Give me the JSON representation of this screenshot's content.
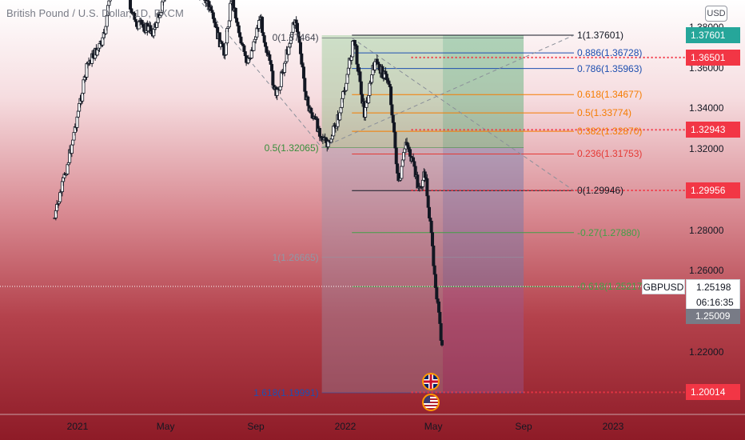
{
  "symbol_title": "British Pound / U.S. Dollar, 1D, FXCM",
  "currency_badge": "USD",
  "chart_data": {
    "type": "candlestick",
    "symbol": "GBPUSD",
    "interval": "1D",
    "ylim": [
      1.17,
      1.395
    ],
    "price_ticks": [
      "1.38000",
      "1.36000",
      "1.34000",
      "1.32000",
      "1.30000",
      "1.28000",
      "1.26000",
      "1.24000",
      "1.22000"
    ],
    "time_ticks": [
      "2021",
      "May",
      "Sep",
      "2022",
      "May",
      "Sep",
      "2023"
    ],
    "price_path": [
      [
        "2020-12-01",
        1.286
      ],
      [
        "2020-12-20",
        1.315
      ],
      [
        "2021-01-15",
        1.362
      ],
      [
        "2021-02-05",
        1.373
      ],
      [
        "2021-02-24",
        1.418
      ],
      [
        "2021-03-20",
        1.382
      ],
      [
        "2021-04-15",
        1.378
      ],
      [
        "2021-05-20",
        1.418
      ],
      [
        "2021-06-02",
        1.422
      ],
      [
        "2021-06-25",
        1.394
      ],
      [
        "2021-07-20",
        1.366
      ],
      [
        "2021-07-30",
        1.395
      ],
      [
        "2021-08-20",
        1.36
      ],
      [
        "2021-09-07",
        1.385
      ],
      [
        "2021-09-29",
        1.345
      ],
      [
        "2021-10-25",
        1.385
      ],
      [
        "2021-11-10",
        1.342
      ],
      [
        "2021-12-08",
        1.3205
      ],
      [
        "2021-12-25",
        1.338
      ],
      [
        "2022-01-13",
        1.3746
      ],
      [
        "2022-01-27",
        1.337
      ],
      [
        "2022-02-10",
        1.363
      ],
      [
        "2022-03-02",
        1.353
      ],
      [
        "2022-03-15",
        1.3
      ],
      [
        "2022-03-25",
        1.325
      ],
      [
        "2022-04-12",
        1.2995
      ],
      [
        "2022-04-20",
        1.308
      ],
      [
        "2022-05-13",
        1.22
      ]
    ],
    "fibonacci": {
      "levels": [
        {
          "ratio": "1",
          "price": 1.37601,
          "label": "1(1.37601)",
          "color": "#131722"
        },
        {
          "ratio": "0.886",
          "price": 1.36728,
          "label": "0.886(1.36728)",
          "color": "#1e4fb0"
        },
        {
          "ratio": "0.786",
          "price": 1.35963,
          "label": "0.786(1.35963)",
          "color": "#1e4fb0"
        },
        {
          "ratio": "0.618",
          "price": 1.34677,
          "label": "0.618(1.34677)",
          "color": "#f57c00"
        },
        {
          "ratio": "0.5",
          "price": 1.33774,
          "label": "0.5(1.33774)",
          "color": "#f57c00"
        },
        {
          "ratio": "0.382",
          "price": 1.3287,
          "label": "0.382(1.32870)",
          "color": "#f57c00"
        },
        {
          "ratio": "0.236",
          "price": 1.31753,
          "label": "0.236(1.31753)",
          "color": "#e53935"
        },
        {
          "ratio": "0",
          "price": 1.29946,
          "label": "0(1.29946)",
          "color": "#131722"
        },
        {
          "ratio": "-0.27",
          "price": 1.2788,
          "label": "-0.27(1.27880)",
          "color": "#43a047"
        },
        {
          "ratio": "-0.618",
          "price": 1.25217,
          "label": "-0.618(1.25217)",
          "color": "#43a047"
        }
      ],
      "left_levels": [
        {
          "label": "0(1.37464)",
          "price": 1.37464,
          "color": "#434651"
        },
        {
          "label": "0.5(1.32065)",
          "price": 1.32065,
          "color": "#388e3c"
        },
        {
          "label": "1(1.26665)",
          "price": 1.26665,
          "color": "#9098a6"
        },
        {
          "label": "1.618(1.19991)",
          "price": 1.19991,
          "color": "#1e4fb0"
        }
      ]
    },
    "price_tags": [
      {
        "label": "1.37601",
        "price": 1.37601,
        "color": "#26a69a"
      },
      {
        "label": "1.36501",
        "price": 1.36501,
        "color": "#f23645"
      },
      {
        "label": "1.32943",
        "price": 1.32943,
        "color": "#f23645"
      },
      {
        "label": "1.29956",
        "price": 1.29956,
        "color": "#f23645"
      },
      {
        "label": "1.20014",
        "price": 1.20014,
        "color": "#f23645"
      }
    ],
    "last_price": {
      "symbol": "GBPUSD",
      "price": "1.25198",
      "countdown": "06:16:35",
      "secondary": "1.25009"
    }
  }
}
